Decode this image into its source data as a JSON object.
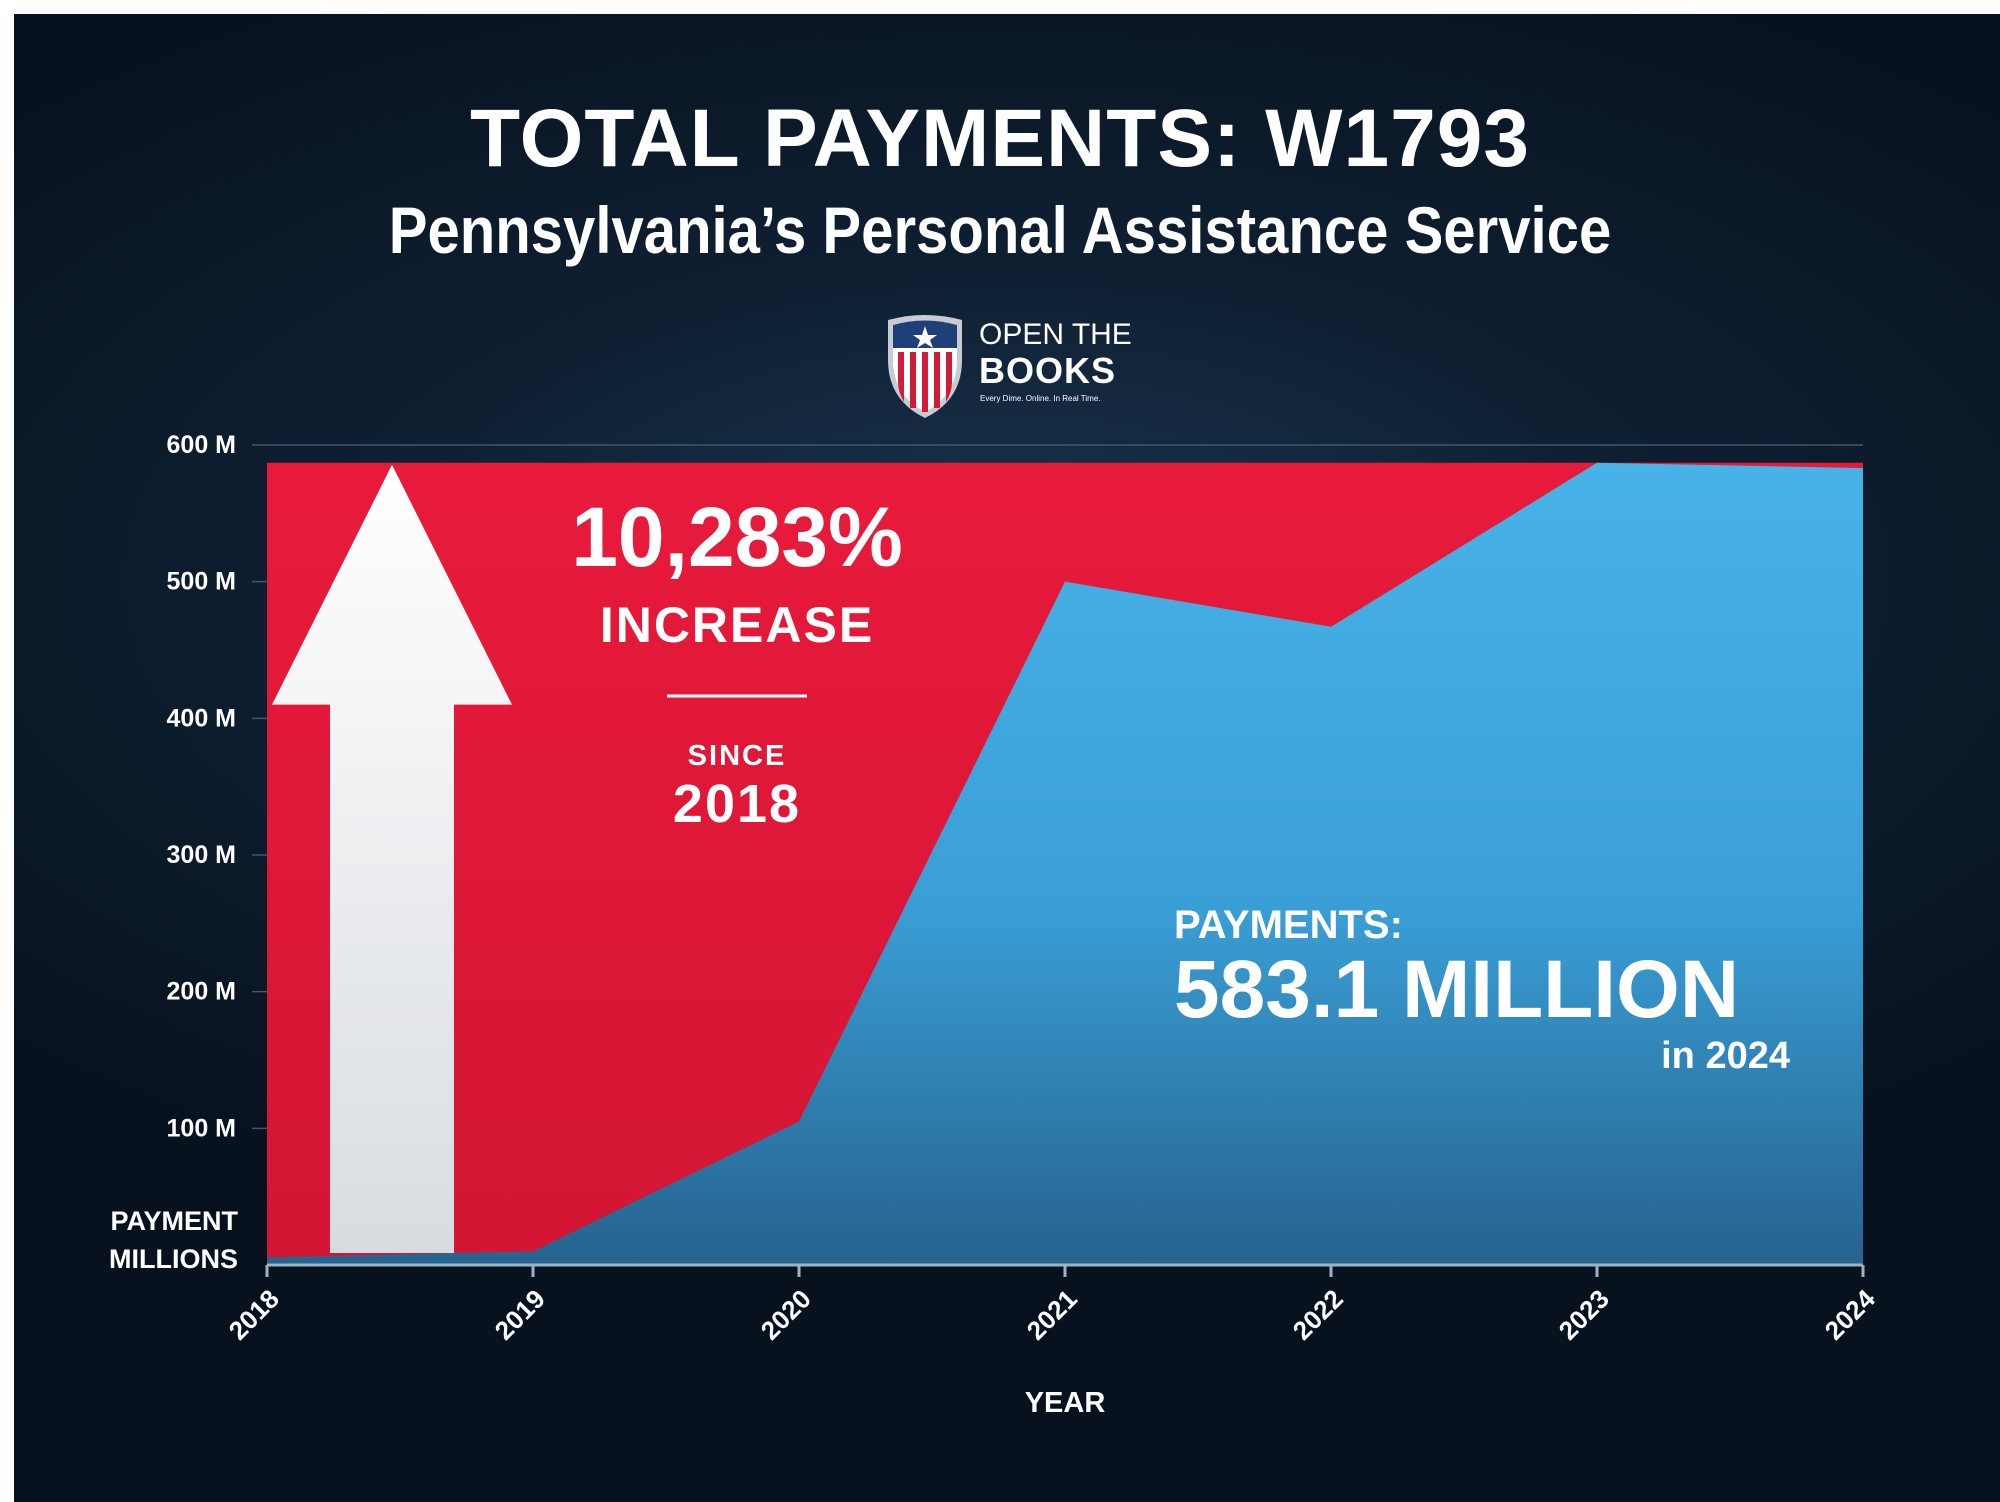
{
  "header": {
    "title": "TOTAL PAYMENTS: W1793",
    "subtitle": "Pennsylvania’s Personal Assistance Service"
  },
  "logo": {
    "line1": "OPEN THE",
    "line2": "BOOKS",
    "tagline": "Every Dime. Online. In Real Time."
  },
  "annotations": {
    "increase_value": "10,283%",
    "increase_label": "INCREASE",
    "since_label": "SINCE",
    "since_year": "2018",
    "payments_label": "PAYMENTS:",
    "payments_value": "583.1 MILLION",
    "payments_year": "in 2024"
  },
  "colors": {
    "background": "#0d1b2a",
    "area_fill": "#3fa9e0",
    "increase_fill": "#e3183a",
    "arrow": "#e8ebee",
    "text": "#ffffff"
  },
  "chart_data": {
    "type": "area",
    "title": "TOTAL PAYMENTS: W1793",
    "subtitle": "Pennsylvania’s Personal Assistance Service",
    "xlabel": "YEAR",
    "ylabel_lines": [
      "PAYMENT",
      "MILLIONS"
    ],
    "x": [
      "2018",
      "2019",
      "2020",
      "2021",
      "2022",
      "2023",
      "2024"
    ],
    "series": [
      {
        "values": [
          5.6,
          10,
          105,
          500,
          467,
          587,
          583.1
        ]
      }
    ],
    "y_ticks": [
      100,
      200,
      300,
      400,
      500,
      600
    ],
    "y_tick_labels": [
      "100 M",
      "200 M",
      "300 M",
      "400 M",
      "500 M",
      "600 M"
    ],
    "ylim": [
      0,
      600
    ],
    "grid": true,
    "legend": "none"
  }
}
